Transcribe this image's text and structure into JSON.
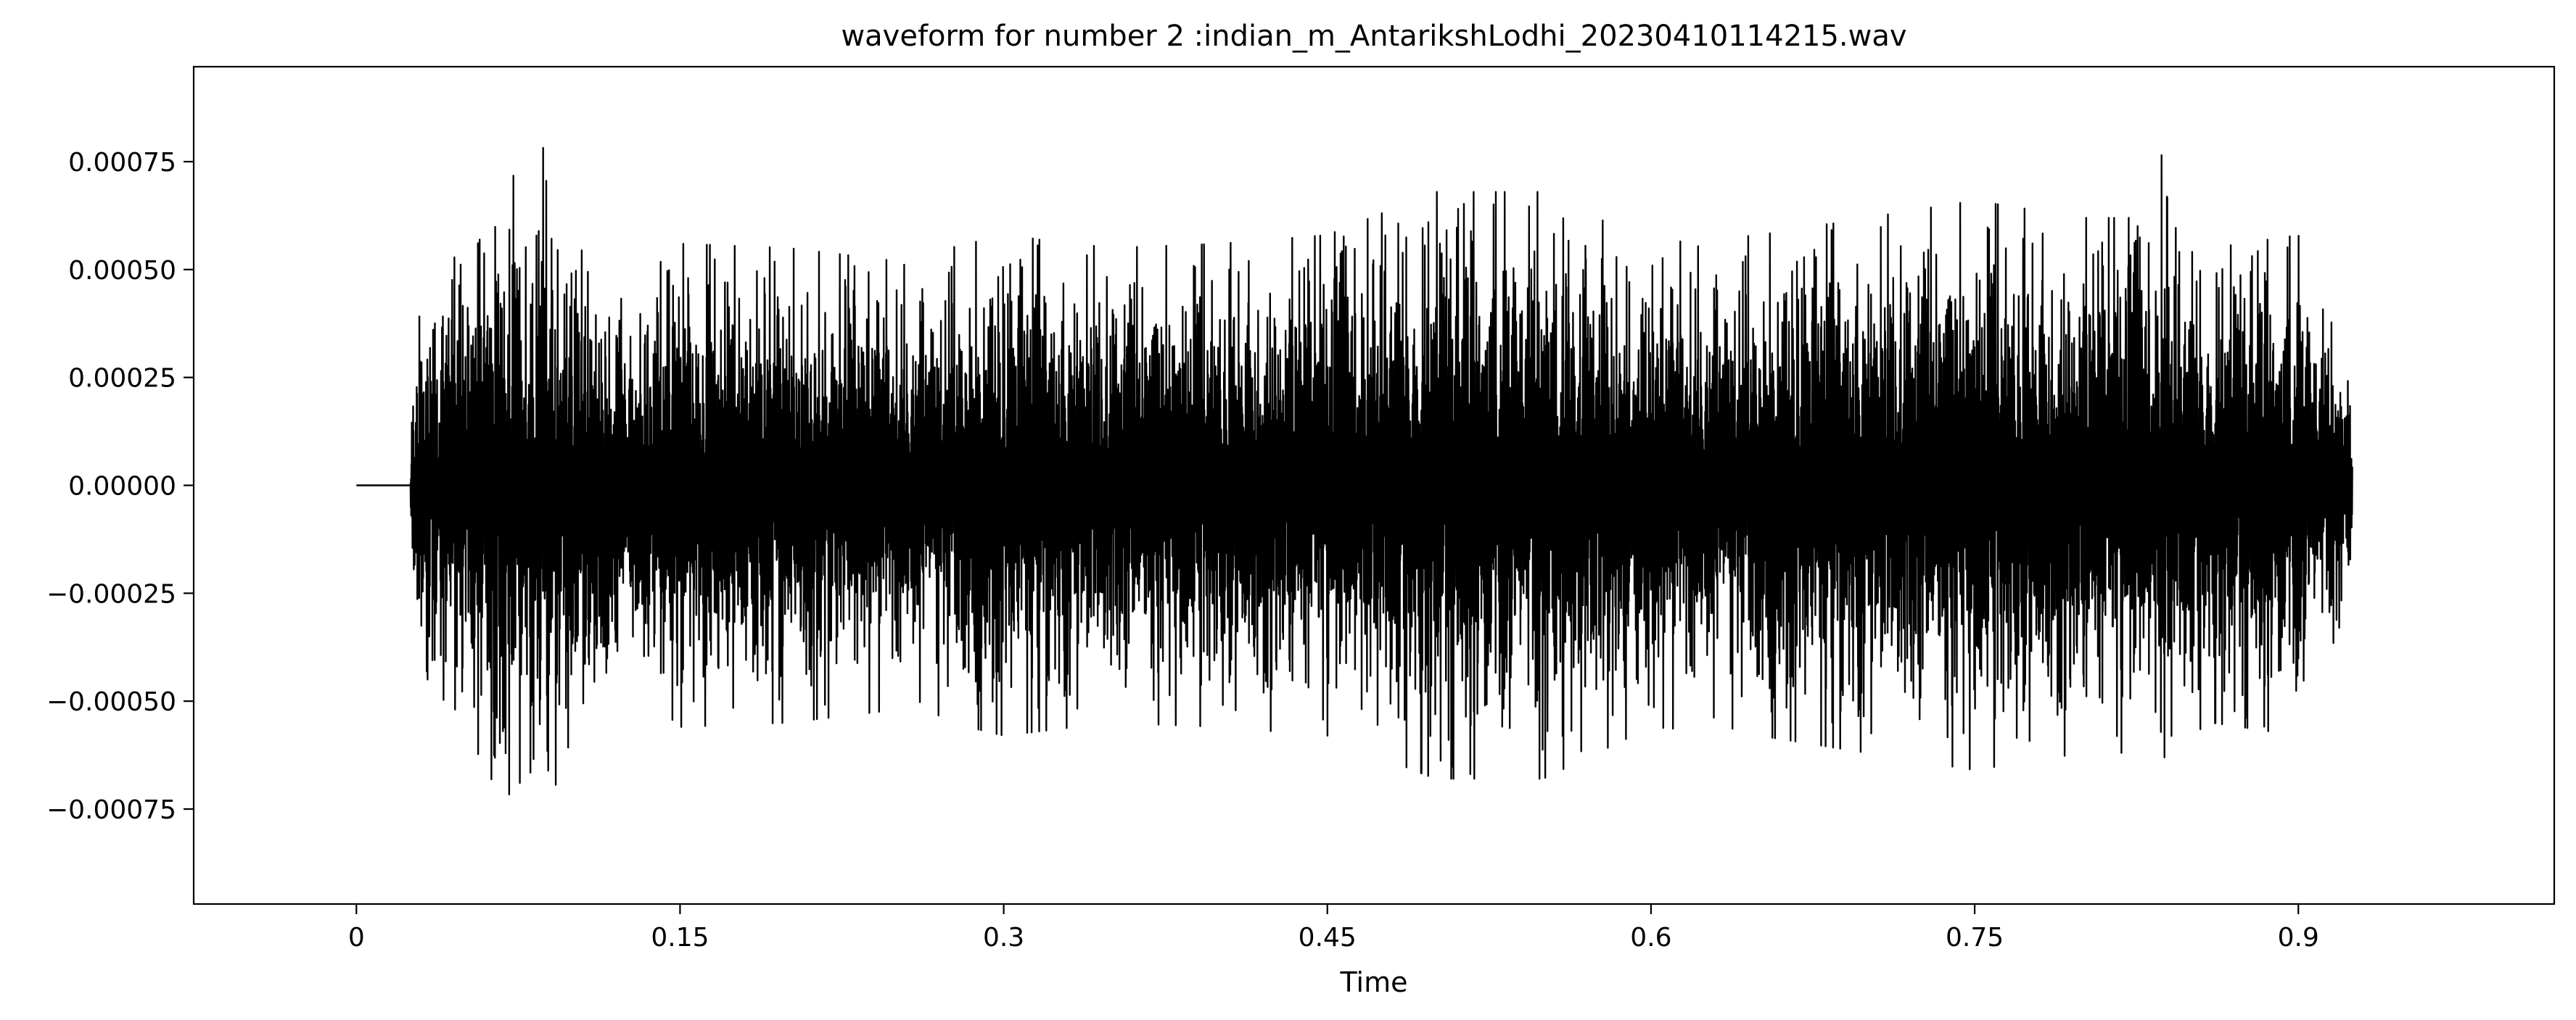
{
  "chart_data": {
    "type": "line",
    "title": "waveform for number 2 :indian_m_AntarikshLodhi_20230410114215.wav",
    "xlabel": "Time",
    "ylabel": "",
    "xlim": [
      -0.0754,
      1.0186
    ],
    "ylim": [
      -0.00097,
      0.00097
    ],
    "grid": false,
    "legend": "none",
    "line_color": "#000000",
    "x_ticks": [
      {
        "value": 0,
        "label": "0"
      },
      {
        "value": 0.15,
        "label": "0.15"
      },
      {
        "value": 0.3,
        "label": "0.3"
      },
      {
        "value": 0.45,
        "label": "0.45"
      },
      {
        "value": 0.6,
        "label": "0.6"
      },
      {
        "value": 0.75,
        "label": "0.75"
      },
      {
        "value": 0.9,
        "label": "0.9"
      }
    ],
    "y_ticks": [
      {
        "value": 0.00075,
        "label": "0.00075"
      },
      {
        "value": 0.0005,
        "label": "0.00050"
      },
      {
        "value": 0.00025,
        "label": "0.00025"
      },
      {
        "value": 0,
        "label": "0.00000"
      },
      {
        "value": -0.00025,
        "label": "−0.00025"
      },
      {
        "value": -0.0005,
        "label": "−0.00050"
      },
      {
        "value": -0.00075,
        "label": "−0.00075"
      }
    ],
    "series": [
      {
        "x": [
          0,
          0.025,
          0.026,
          0.03,
          0.05,
          0.06,
          0.065,
          0.08,
          0.086,
          0.1,
          0.12,
          0.15,
          0.2,
          0.25,
          0.3,
          0.35,
          0.4,
          0.45,
          0.5,
          0.55,
          0.6,
          0.65,
          0.7,
          0.75,
          0.8,
          0.835,
          0.838,
          0.842,
          0.86,
          0.9,
          0.925
        ],
        "envelope": [
          0,
          0,
          0.00028,
          0.00042,
          0.00062,
          0.00068,
          0.00079,
          0.00065,
          0.00079,
          0.00058,
          0.00042,
          0.00056,
          0.00055,
          0.00052,
          0.00058,
          0.00055,
          0.00056,
          0.00058,
          0.00068,
          0.00068,
          0.00056,
          0.00058,
          0.00062,
          0.00066,
          0.00062,
          0.00062,
          0.00089,
          0.0006,
          0.00055,
          0.00058,
          0.00025
        ]
      }
    ]
  }
}
